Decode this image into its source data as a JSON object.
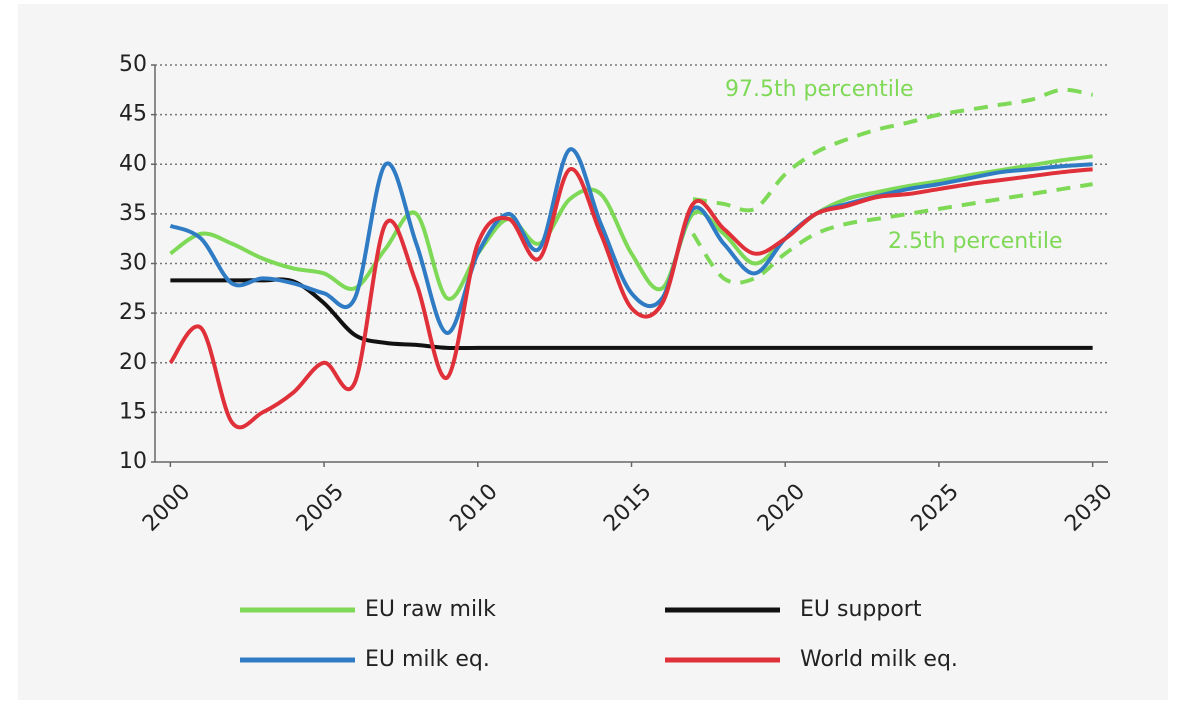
{
  "chart_data": {
    "type": "line",
    "x": [
      2000,
      2001,
      2002,
      2003,
      2004,
      2005,
      2006,
      2007,
      2008,
      2009,
      2010,
      2011,
      2012,
      2013,
      2014,
      2015,
      2016,
      2017,
      2018,
      2019,
      2020,
      2021,
      2022,
      2023,
      2024,
      2025,
      2026,
      2027,
      2028,
      2029,
      2030
    ],
    "series": [
      {
        "name": "EU raw milk",
        "color": "#7ed957",
        "values": [
          31,
          33,
          32,
          30.5,
          29.5,
          29,
          27.5,
          31.5,
          35,
          26.5,
          31,
          34.5,
          32,
          36.5,
          37,
          31,
          27.5,
          35,
          33,
          30,
          32.5,
          35,
          36.5,
          37.2,
          37.8,
          38.3,
          38.9,
          39.4,
          39.9,
          40.4,
          40.8
        ]
      },
      {
        "name": "EU support",
        "color": "#111111",
        "values": [
          28.3,
          28.3,
          28.3,
          28.3,
          28.2,
          26,
          22.8,
          22,
          21.8,
          21.5,
          21.5,
          21.5,
          21.5,
          21.5,
          21.5,
          21.5,
          21.5,
          21.5,
          21.5,
          21.5,
          21.5,
          21.5,
          21.5,
          21.5,
          21.5,
          21.5,
          21.5,
          21.5,
          21.5,
          21.5,
          21.5
        ]
      },
      {
        "name": "EU milk eq.",
        "color": "#2f7bc4",
        "values": [
          33.8,
          32.5,
          28,
          28.5,
          28,
          27,
          26.5,
          40,
          32,
          23,
          31,
          35,
          31.5,
          41.5,
          34,
          27,
          26.5,
          35.5,
          32,
          29,
          32.5,
          35,
          36,
          36.8,
          37.5,
          38,
          38.6,
          39.2,
          39.5,
          39.8,
          40
        ]
      },
      {
        "name": "World milk eq.",
        "color": "#e0303a",
        "values": [
          20,
          23.5,
          14,
          15,
          17,
          20,
          18,
          34,
          28,
          18.5,
          32,
          34.5,
          30.5,
          39.5,
          33,
          25.5,
          26,
          36,
          33.5,
          31,
          32.5,
          35,
          35.8,
          36.7,
          37,
          37.5,
          38,
          38.4,
          38.8,
          39.2,
          39.5
        ]
      }
    ],
    "percentiles": [
      {
        "label": "97.5th percentile",
        "color": "#7ed957",
        "x": [
          2017,
          2018,
          2019,
          2020,
          2021,
          2022,
          2023,
          2024,
          2025,
          2026,
          2027,
          2028,
          2029,
          2030
        ],
        "values": [
          36.5,
          36,
          35.5,
          39,
          41.2,
          42.5,
          43.5,
          44.2,
          45,
          45.5,
          46,
          46.5,
          47.5,
          47
        ]
      },
      {
        "label": "2.5th percentile",
        "color": "#7ed957",
        "x": [
          2017,
          2018,
          2019,
          2020,
          2021,
          2022,
          2023,
          2024,
          2025,
          2026,
          2027,
          2028,
          2029,
          2030
        ],
        "values": [
          33,
          28.5,
          28.5,
          31,
          33,
          34,
          34.5,
          35,
          35.5,
          36,
          36.5,
          37,
          37.5,
          38
        ]
      }
    ],
    "xlim": [
      1999.5,
      2030.5
    ],
    "xticks": [
      2000,
      2005,
      2010,
      2015,
      2020,
      2025,
      2030
    ],
    "ylim": [
      10,
      50
    ],
    "yticks": [
      10,
      15,
      20,
      25,
      30,
      35,
      40,
      45,
      50
    ],
    "grid": true
  }
}
